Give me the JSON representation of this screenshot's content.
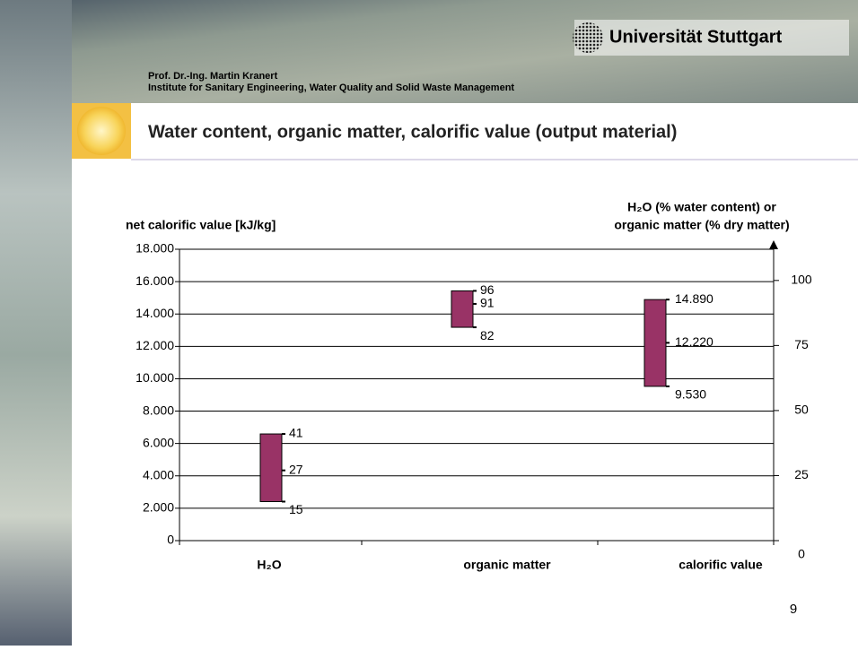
{
  "header": {
    "university": "Universität Stuttgart",
    "author": "Prof. Dr.-Ing. Martin Kranert",
    "institute": "Institute for Sanitary Engineering, Water Quality and Solid Waste Management",
    "title": "Water content, organic matter, calorific value (output material)"
  },
  "page_number": "9",
  "chart_data": {
    "type": "range",
    "y_label": "net calorific value [kJ/kg]",
    "y2_label": [
      "H₂O (% water content) or",
      "organic matter (% dry matter)"
    ],
    "categories": [
      "H₂O",
      "organic matter",
      "calorific value"
    ],
    "color": "#993366",
    "ranges": [
      {
        "values": [
          15,
          27,
          41
        ],
        "axis": "y2"
      },
      {
        "values": [
          82,
          91,
          96
        ],
        "axis": "y2"
      },
      {
        "values": [
          9530,
          12220,
          14890
        ],
        "value_labels": [
          "9.530",
          "12.220",
          "14.890"
        ]
      }
    ],
    "ylim": [
      0,
      18000
    ],
    "yticks": [
      0,
      {
        "value": 2000,
        "label": "2.000"
      },
      {
        "value": 4000,
        "label": "4.000"
      },
      {
        "value": 6000,
        "label": "6.000"
      },
      {
        "value": 8000,
        "label": "8.000"
      },
      {
        "value": 10000,
        "label": "10.000"
      },
      {
        "value": 12000,
        "label": "12.000"
      },
      {
        "value": 14000,
        "label": "14.000"
      },
      {
        "value": 16000,
        "label": "16.000"
      },
      {
        "value": 18000,
        "label": "18.000"
      }
    ],
    "y2lim": [
      0,
      112
    ],
    "y2ticks": [
      0,
      25,
      50,
      75,
      100
    ],
    "grid": true
  }
}
